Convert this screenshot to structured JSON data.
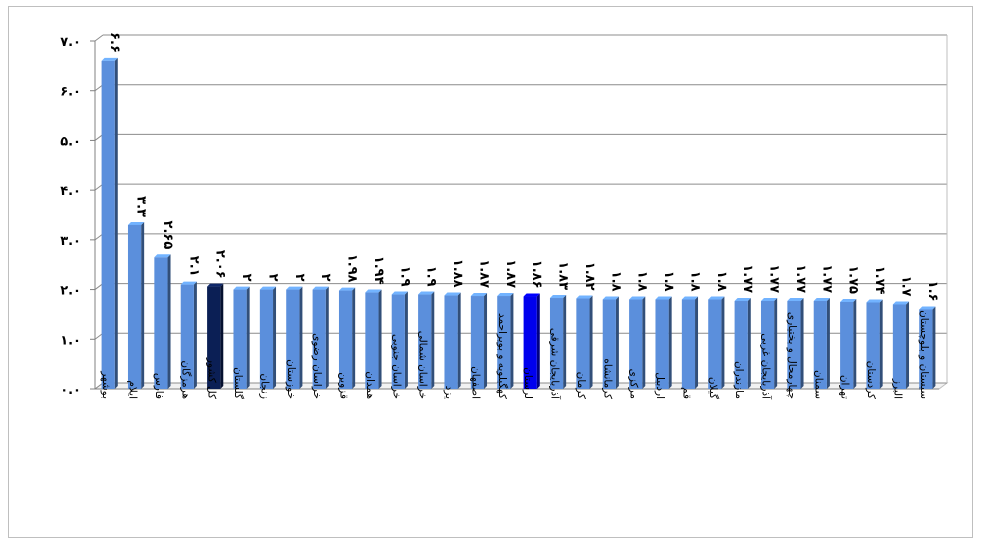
{
  "chart_data": {
    "type": "bar",
    "title": "",
    "xlabel": "",
    "ylabel": "",
    "ylim": [
      0,
      7
    ],
    "y_ticks": [
      0,
      1,
      2,
      3,
      4,
      5,
      6,
      7
    ],
    "y_tick_labels": [
      "۰.۰",
      "۱.۰",
      "۲.۰",
      "۳.۰",
      "۴.۰",
      "۵.۰",
      "۶.۰",
      "۷.۰"
    ],
    "grid": true,
    "legend": "none",
    "bar_color": "#5b8fdc",
    "highlight_colors": {
      "national": "#0b1f55",
      "province": "#0000ee"
    },
    "categories": [
      "بوشهر",
      "ایلام",
      "فارس",
      "هرمزگان",
      "کل کشور",
      "گلستان",
      "زنجان",
      "خوزستان",
      "خراسان رضوی",
      "قزوین",
      "همدان",
      "خراسان جنوبی",
      "خراسان شمالی",
      "یزد",
      "اصفهان",
      "کهگیلویه و بویراحمد",
      "لرستان",
      "آذربایجان شرقی",
      "کرمان",
      "کرمانشاه",
      "مرکزی",
      "اردبیل",
      "قم",
      "گیلان",
      "مازندران",
      "آذربایجان غربی",
      "چهارمحال و بختیاری",
      "سمنان",
      "تهران",
      "کردستان",
      "البرز",
      "سیستان و بلوچستان"
    ],
    "values": [
      6.6,
      3.3,
      2.65,
      2.1,
      2.06,
      2,
      2,
      2,
      2,
      1.98,
      1.94,
      1.9,
      1.9,
      1.88,
      1.87,
      1.87,
      1.86,
      1.83,
      1.82,
      1.8,
      1.8,
      1.8,
      1.8,
      1.8,
      1.77,
      1.77,
      1.77,
      1.77,
      1.75,
      1.74,
      1.7,
      1.6
    ],
    "value_labels": [
      "۶.۶",
      "۳.۳",
      "۲.۶۵",
      "۲.۱",
      "۲.۰۶",
      "۲",
      "۲",
      "۲",
      "۲",
      "۱.۹۸",
      "۱.۹۴",
      "۱.۹",
      "۱.۹",
      "۱.۸۸",
      "۱.۸۷",
      "۱.۸۷",
      "۱.۸۶",
      "۱.۸۳",
      "۱.۸۲",
      "۱.۸",
      "۱.۸",
      "۱.۸",
      "۱.۸",
      "۱.۸",
      "۱.۷۷",
      "۱.۷۷",
      "۱.۷۷",
      "۱.۷۷",
      "۱.۷۵",
      "۱.۷۴",
      "۱.۷",
      "۱.۶"
    ],
    "highlight": {
      "کل کشور": "national",
      "لرستان": "province"
    }
  }
}
